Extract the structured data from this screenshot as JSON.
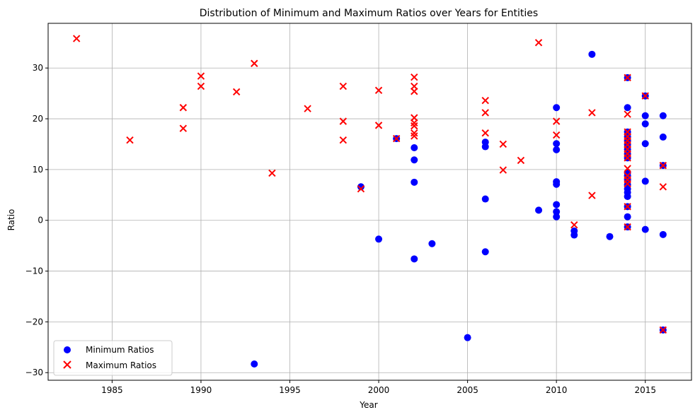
{
  "chart_data": {
    "type": "scatter",
    "title": "Distribution of Minimum and Maximum Ratios over Years for Entities",
    "xlabel": "Year",
    "ylabel": "Ratio",
    "xlim": [
      1981.4,
      2017.6
    ],
    "ylim": [
      -31.5,
      38.8
    ],
    "xticks": [
      1985,
      1990,
      1995,
      2000,
      2005,
      2010,
      2015
    ],
    "yticks": [
      -30,
      -20,
      -10,
      0,
      10,
      20,
      30
    ],
    "grid": true,
    "legend_position": "lower-left",
    "series": [
      {
        "name": "Minimum Ratios",
        "marker": "circle",
        "color": "#0000ff",
        "points": [
          [
            1993,
            -28.3
          ],
          [
            1999,
            6.6
          ],
          [
            2000,
            -3.7
          ],
          [
            2001,
            16.1
          ],
          [
            2002,
            14.3
          ],
          [
            2002,
            11.9
          ],
          [
            2002,
            7.5
          ],
          [
            2002,
            -7.6
          ],
          [
            2003,
            -4.6
          ],
          [
            2005,
            -23.1
          ],
          [
            2006,
            15.4
          ],
          [
            2006,
            14.5
          ],
          [
            2006,
            4.2
          ],
          [
            2006,
            -6.2
          ],
          [
            2009,
            2.0
          ],
          [
            2010,
            22.2
          ],
          [
            2010,
            15.1
          ],
          [
            2010,
            13.9
          ],
          [
            2010,
            7.6
          ],
          [
            2010,
            7.1
          ],
          [
            2010,
            3.1
          ],
          [
            2010,
            1.7
          ],
          [
            2010,
            0.7
          ],
          [
            2011,
            -2.1
          ],
          [
            2011,
            -2.9
          ],
          [
            2012,
            32.7
          ],
          [
            2013,
            -3.2
          ],
          [
            2014,
            28.1
          ],
          [
            2014,
            22.2
          ],
          [
            2014,
            17.4
          ],
          [
            2014,
            16.5
          ],
          [
            2014,
            15.7
          ],
          [
            2014,
            14.9
          ],
          [
            2014,
            14.0
          ],
          [
            2014,
            13.1
          ],
          [
            2014,
            12.3
          ],
          [
            2014,
            9.4
          ],
          [
            2014,
            8.8
          ],
          [
            2014,
            8.0
          ],
          [
            2014,
            7.0
          ],
          [
            2014,
            6.2
          ],
          [
            2014,
            5.5
          ],
          [
            2014,
            4.7
          ],
          [
            2014,
            2.7
          ],
          [
            2014,
            0.7
          ],
          [
            2014,
            -1.3
          ],
          [
            2015,
            24.5
          ],
          [
            2015,
            20.6
          ],
          [
            2015,
            19.0
          ],
          [
            2015,
            15.1
          ],
          [
            2015,
            7.7
          ],
          [
            2015,
            -1.8
          ],
          [
            2016,
            20.6
          ],
          [
            2016,
            16.4
          ],
          [
            2016,
            10.8
          ],
          [
            2016,
            -2.8
          ],
          [
            2016,
            -21.6
          ]
        ]
      },
      {
        "name": "Maximum Ratios",
        "marker": "x",
        "color": "#ff0000",
        "points": [
          [
            1983,
            35.8
          ],
          [
            1986,
            15.8
          ],
          [
            1989,
            22.2
          ],
          [
            1989,
            18.1
          ],
          [
            1990,
            28.4
          ],
          [
            1990,
            26.4
          ],
          [
            1992,
            25.3
          ],
          [
            1993,
            30.9
          ],
          [
            1994,
            9.3
          ],
          [
            1996,
            22.0
          ],
          [
            1998,
            26.4
          ],
          [
            1998,
            19.5
          ],
          [
            1998,
            15.8
          ],
          [
            1999,
            6.2
          ],
          [
            2000,
            25.6
          ],
          [
            2000,
            18.7
          ],
          [
            2001,
            16.1
          ],
          [
            2002,
            28.2
          ],
          [
            2002,
            26.4
          ],
          [
            2002,
            25.4
          ],
          [
            2002,
            20.2
          ],
          [
            2002,
            19.2
          ],
          [
            2002,
            18.6
          ],
          [
            2002,
            17.2
          ],
          [
            2002,
            16.6
          ],
          [
            2006,
            23.6
          ],
          [
            2006,
            21.2
          ],
          [
            2006,
            17.2
          ],
          [
            2007,
            15.0
          ],
          [
            2007,
            9.9
          ],
          [
            2008,
            11.8
          ],
          [
            2009,
            35.0
          ],
          [
            2010,
            19.5
          ],
          [
            2010,
            16.8
          ],
          [
            2011,
            -0.9
          ],
          [
            2012,
            21.2
          ],
          [
            2012,
            4.9
          ],
          [
            2014,
            28.1
          ],
          [
            2014,
            20.9
          ],
          [
            2014,
            17.4
          ],
          [
            2014,
            16.5
          ],
          [
            2014,
            15.7
          ],
          [
            2014,
            14.9
          ],
          [
            2014,
            14.0
          ],
          [
            2014,
            13.1
          ],
          [
            2014,
            12.3
          ],
          [
            2014,
            10.2
          ],
          [
            2014,
            8.8
          ],
          [
            2014,
            8.0
          ],
          [
            2014,
            7.2
          ],
          [
            2014,
            2.7
          ],
          [
            2014,
            -1.3
          ],
          [
            2015,
            24.5
          ],
          [
            2016,
            10.8
          ],
          [
            2016,
            6.6
          ],
          [
            2016,
            -21.6
          ]
        ]
      }
    ]
  }
}
